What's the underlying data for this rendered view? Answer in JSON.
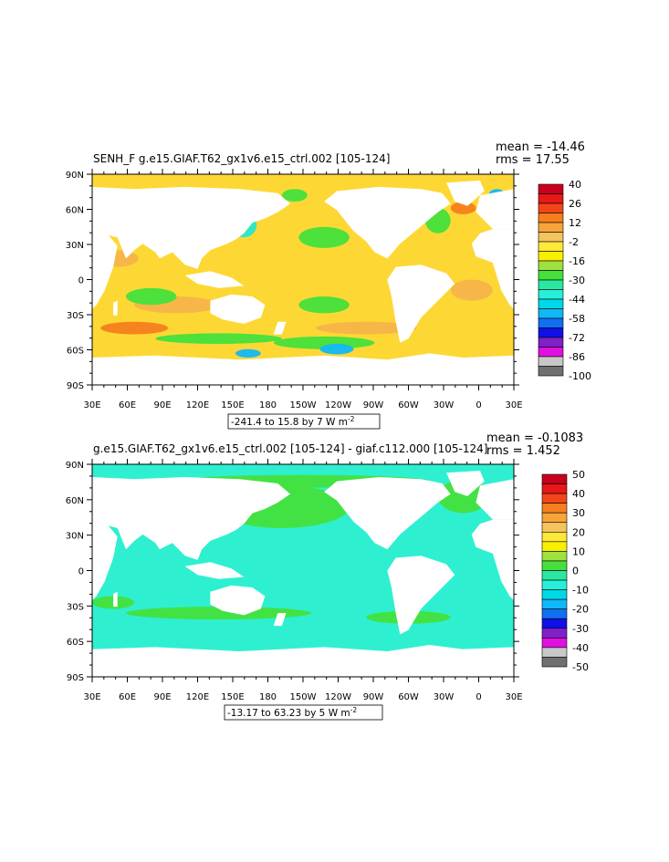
{
  "panels": [
    {
      "title": "SENH_F g.e15.GIAF.T62_gx1v6.e15_ctrl.002 [105-124]",
      "stats_mean": "mean = -14.46",
      "stats_rms": "rms = 17.55",
      "range_label": "-241.4 to 15.8 by 7  W m",
      "range_exp": "-2",
      "lat_labels": [
        "90N",
        "60N",
        "30N",
        "0",
        "30S",
        "60S",
        "90S"
      ],
      "lon_labels": [
        "30E",
        "60E",
        "90E",
        "120E",
        "150E",
        "180",
        "150W",
        "120W",
        "90W",
        "60W",
        "30W",
        "0",
        "30E"
      ],
      "legend_labels": [
        "40",
        "26",
        "12",
        "-2",
        "-16",
        "-30",
        "-44",
        "-58",
        "-72",
        "-86",
        "-100"
      ],
      "legend_colors": [
        "#c8001e",
        "#e81818",
        "#f2461a",
        "#f57f1e",
        "#f7a53a",
        "#f5c45e",
        "#ffe838",
        "#f8f000",
        "#a0e040",
        "#45e03c",
        "#2ae8a0",
        "#28f0d8",
        "#00d8e8",
        "#10b8f8",
        "#1070f0",
        "#1010e8",
        "#8020c8",
        "#e010e0",
        "#c8c8c8",
        "#707070"
      ],
      "ocean_color": "#fdd835",
      "patch_colors": [
        "#f6b54a",
        "#45e03c",
        "#2ae8c8",
        "#10b8f8",
        "#1010e8",
        "#f57f1e"
      ]
    },
    {
      "title": "g.e15.GIAF.T62_gx1v6.e15_ctrl.002 [105-124] - giaf.c112.000 [105-124]",
      "stats_mean": "mean = -0.1083",
      "stats_rms": "rms = 1.452",
      "range_label": "-13.17 to 63.23 by 5  W m",
      "range_exp": "-2",
      "lat_labels": [
        "90N",
        "60N",
        "30N",
        "0",
        "30S",
        "60S",
        "90S"
      ],
      "lon_labels": [
        "30E",
        "60E",
        "90E",
        "120E",
        "150E",
        "180",
        "150W",
        "120W",
        "90W",
        "60W",
        "30W",
        "0",
        "30E"
      ],
      "legend_labels": [
        "50",
        "40",
        "30",
        "20",
        "10",
        "0",
        "-10",
        "-20",
        "-30",
        "-40",
        "-50"
      ],
      "legend_colors": [
        "#c8001e",
        "#e81818",
        "#f2461a",
        "#f57f1e",
        "#f7a53a",
        "#f5c45e",
        "#ffe838",
        "#f8f000",
        "#a0e040",
        "#45e03c",
        "#2ae8a0",
        "#28f0d8",
        "#00d8e8",
        "#10b8f8",
        "#1070f0",
        "#1010e8",
        "#8020c8",
        "#e010e0",
        "#c8c8c8",
        "#707070"
      ],
      "ocean_color": "#2ef0d0",
      "patch_colors": [
        "#45e03c",
        "#45e03c",
        "#30e8a0",
        "#f8f000",
        "#f57f1e"
      ]
    }
  ]
}
